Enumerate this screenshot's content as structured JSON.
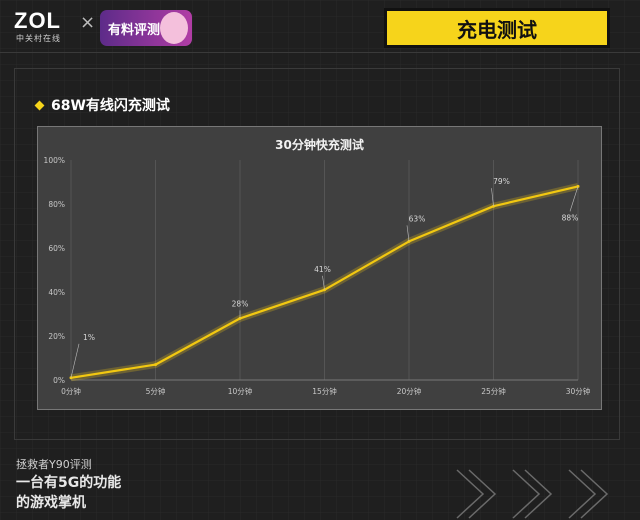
{
  "logo": {
    "main": "ZOL",
    "sub": "中关村在线",
    "times": "×",
    "badge": "有料评测"
  },
  "header": {
    "title": "充电测试"
  },
  "section": {
    "title": "68W有线闪充测试"
  },
  "footer": {
    "line1": "拯救者Y90评测",
    "line2": "一台有5G的功能",
    "line3": "的游戏掌机"
  },
  "colors": {
    "accent": "#f6d41b",
    "line": "#f2c811",
    "background": "#1f1f1f",
    "plot_bg": "#404040"
  },
  "chart_data": {
    "type": "line",
    "title": "30分钟快充测试",
    "categories": [
      "0分钟",
      "5分钟",
      "10分钟",
      "15分钟",
      "20分钟",
      "25分钟",
      "30分钟"
    ],
    "series": [
      {
        "values": [
          1,
          7,
          28,
          41,
          63,
          79,
          88
        ]
      }
    ],
    "data_labels": [
      "1%",
      "",
      "28%",
      "41%",
      "63%",
      "79%",
      "88%"
    ],
    "y_tick_labels": [
      "0%",
      "20%",
      "40%",
      "60%",
      "80%",
      "100%"
    ],
    "ylim": [
      0,
      100
    ],
    "grid": "vertical",
    "legend": "none"
  }
}
